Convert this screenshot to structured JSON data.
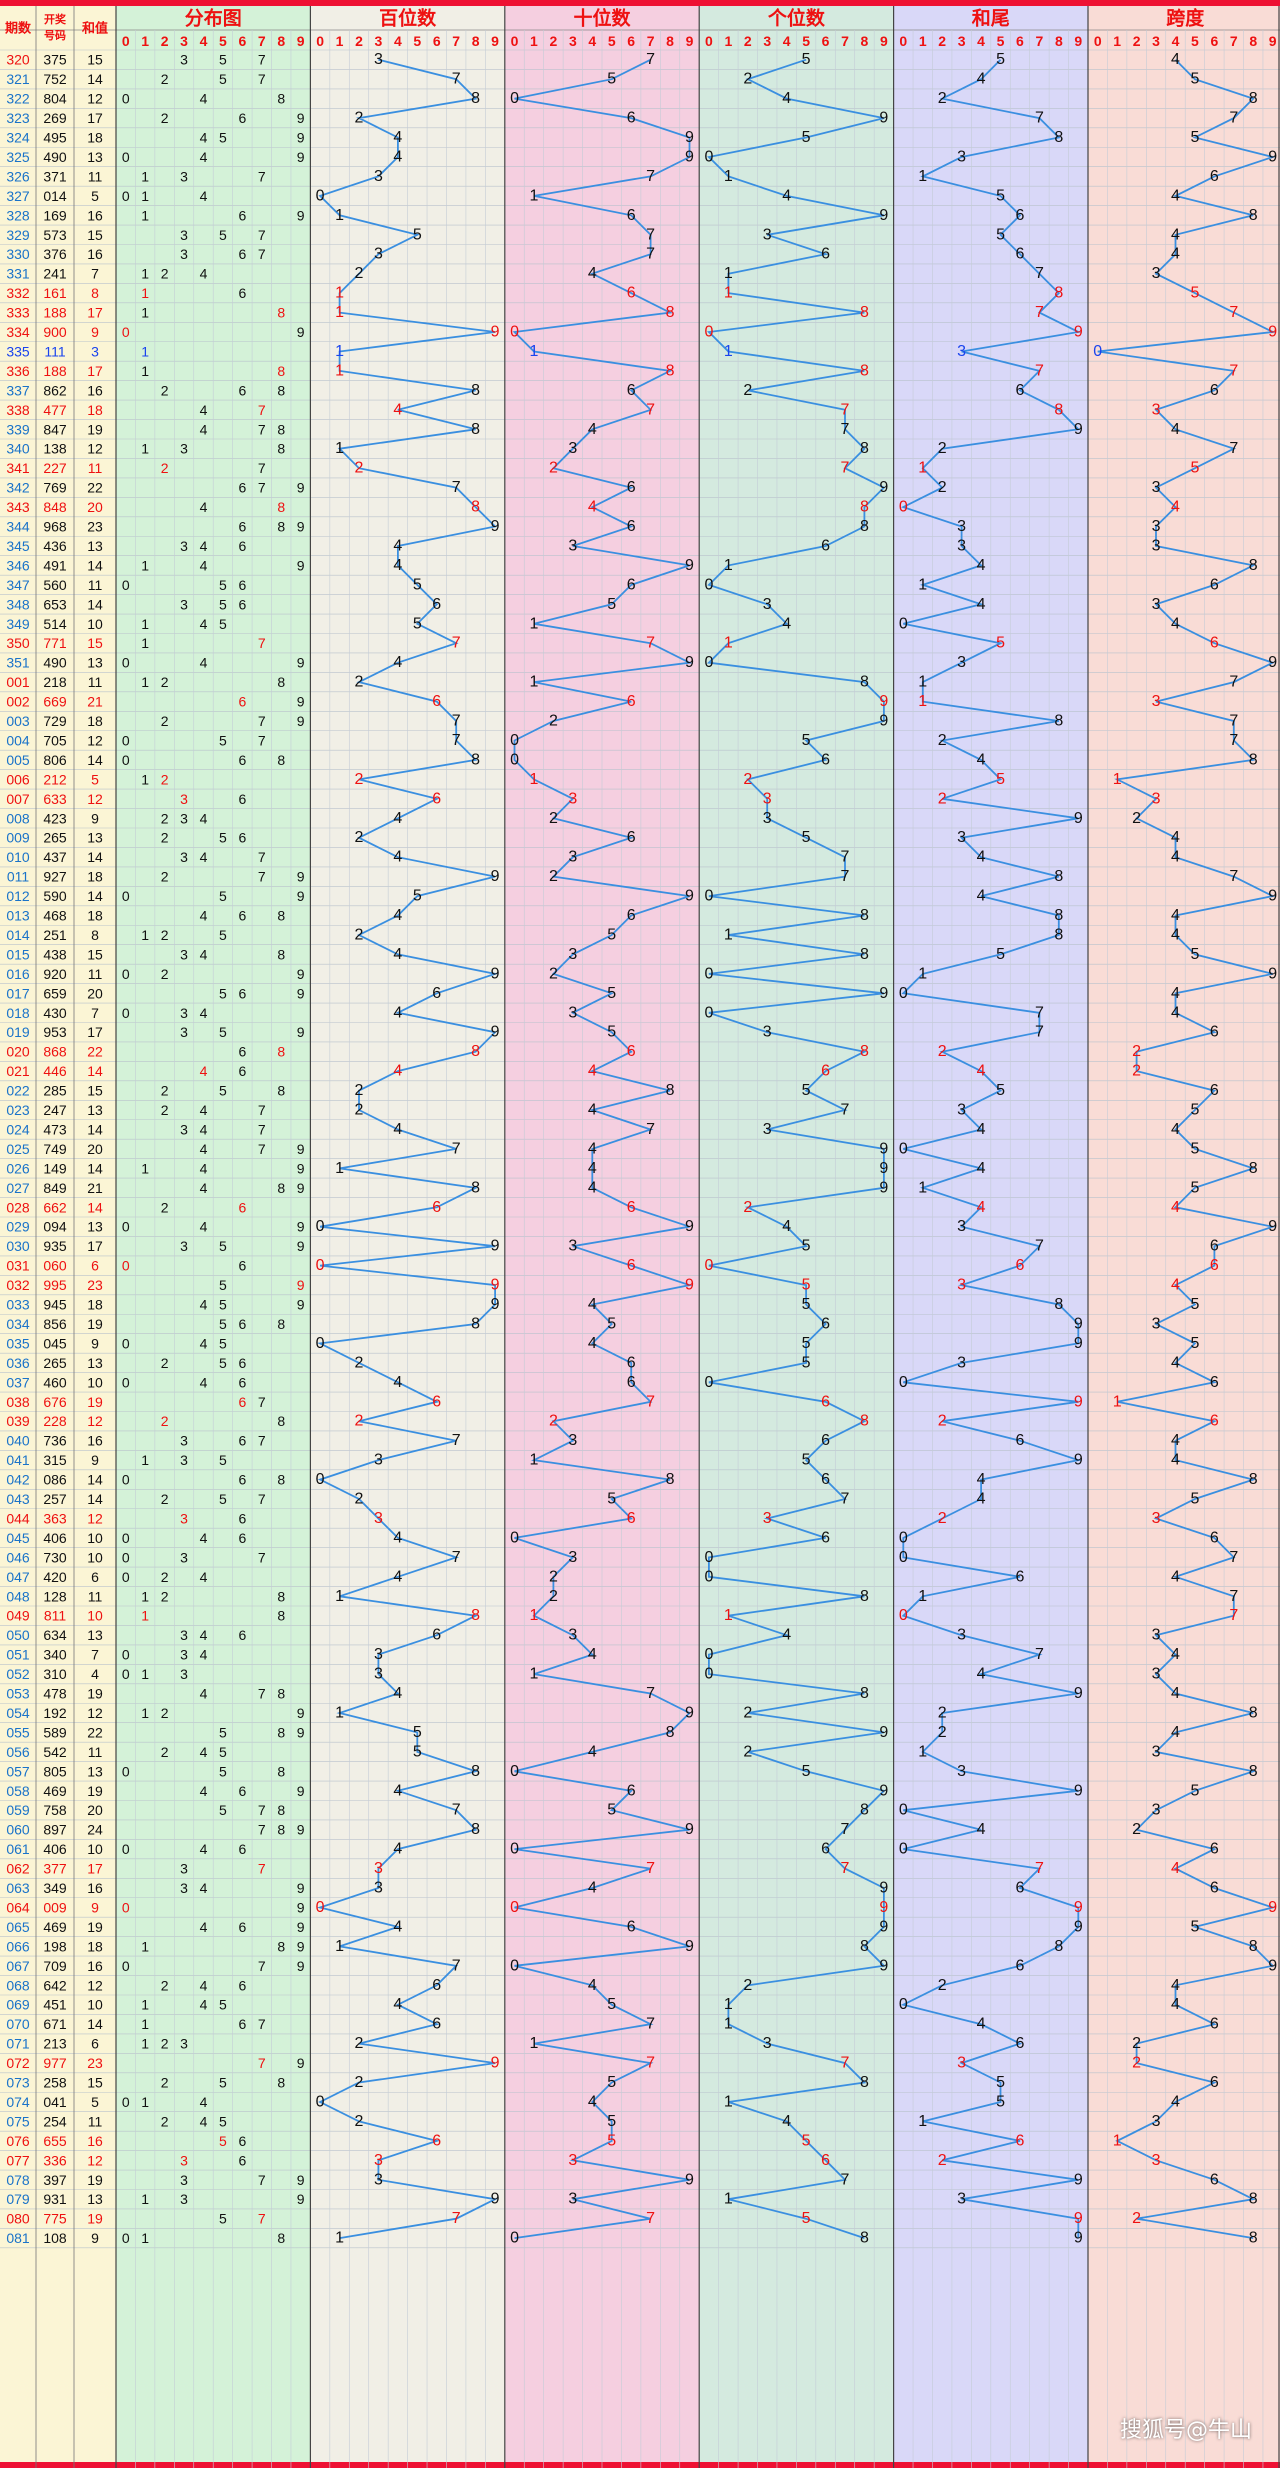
{
  "header": {
    "period_label": "期数",
    "draw_label": "开奖号码",
    "sum_label": "和值",
    "sections": [
      "分布图",
      "百位数",
      "十位数",
      "个位数",
      "和尾",
      "跨度"
    ]
  },
  "colors": {
    "red": "#ee1111",
    "blue": "#1a44ee",
    "black": "#111111",
    "line": "#3a8fe0",
    "sec_dist": "#d4f2d8",
    "sec_hundreds": "#f1efe6",
    "sec_tens": "#f5cfe0",
    "sec_ones": "#d4eadf",
    "sec_sumtail": "#d9d8f8",
    "sec_span": "#f9dcd6",
    "left_bg": "#fbf5d5",
    "top_bar": "#ee1133"
  },
  "chart_data": {
    "type": "table",
    "columns": [
      "期数",
      "开奖号码",
      "和值"
    ],
    "sections": [
      "分布图",
      "百位数",
      "十位数",
      "个位数",
      "和尾",
      "跨度"
    ],
    "digit_headers": [
      "0",
      "1",
      "2",
      "3",
      "4",
      "5",
      "6",
      "7",
      "8",
      "9"
    ],
    "rows": [
      [
        "320",
        "375",
        "15"
      ],
      [
        "321",
        "752",
        "14"
      ],
      [
        "322",
        "804",
        "12"
      ],
      [
        "323",
        "269",
        "17"
      ],
      [
        "324",
        "495",
        "18"
      ],
      [
        "325",
        "490",
        "13"
      ],
      [
        "326",
        "371",
        "11"
      ],
      [
        "327",
        "014",
        "5"
      ],
      [
        "328",
        "169",
        "16"
      ],
      [
        "329",
        "573",
        "15"
      ],
      [
        "330",
        "376",
        "16"
      ],
      [
        "331",
        "241",
        "7"
      ],
      [
        "332",
        "161",
        "8"
      ],
      [
        "333",
        "188",
        "17"
      ],
      [
        "334",
        "900",
        "9"
      ],
      [
        "335",
        "111",
        "3"
      ],
      [
        "336",
        "188",
        "17"
      ],
      [
        "337",
        "862",
        "16"
      ],
      [
        "338",
        "477",
        "18"
      ],
      [
        "339",
        "847",
        "19"
      ],
      [
        "340",
        "138",
        "12"
      ],
      [
        "341",
        "227",
        "11"
      ],
      [
        "342",
        "769",
        "22"
      ],
      [
        "343",
        "848",
        "20"
      ],
      [
        "344",
        "968",
        "23"
      ],
      [
        "345",
        "436",
        "13"
      ],
      [
        "346",
        "491",
        "14"
      ],
      [
        "347",
        "560",
        "11"
      ],
      [
        "348",
        "653",
        "14"
      ],
      [
        "349",
        "514",
        "10"
      ],
      [
        "350",
        "771",
        "15"
      ],
      [
        "351",
        "490",
        "13"
      ],
      [
        "001",
        "218",
        "11"
      ],
      [
        "002",
        "669",
        "21"
      ],
      [
        "003",
        "729",
        "18"
      ],
      [
        "004",
        "705",
        "12"
      ],
      [
        "005",
        "806",
        "14"
      ],
      [
        "006",
        "212",
        "5"
      ],
      [
        "007",
        "633",
        "12"
      ],
      [
        "008",
        "423",
        "9"
      ],
      [
        "009",
        "265",
        "13"
      ],
      [
        "010",
        "437",
        "14"
      ],
      [
        "011",
        "927",
        "18"
      ],
      [
        "012",
        "590",
        "14"
      ],
      [
        "013",
        "468",
        "18"
      ],
      [
        "014",
        "251",
        "8"
      ],
      [
        "015",
        "438",
        "15"
      ],
      [
        "016",
        "920",
        "11"
      ],
      [
        "017",
        "659",
        "20"
      ],
      [
        "018",
        "430",
        "7"
      ],
      [
        "019",
        "953",
        "17"
      ],
      [
        "020",
        "868",
        "22"
      ],
      [
        "021",
        "446",
        "14"
      ],
      [
        "022",
        "285",
        "15"
      ],
      [
        "023",
        "247",
        "13"
      ],
      [
        "024",
        "473",
        "14"
      ],
      [
        "025",
        "749",
        "20"
      ],
      [
        "026",
        "149",
        "14"
      ],
      [
        "027",
        "849",
        "21"
      ],
      [
        "028",
        "662",
        "14"
      ],
      [
        "029",
        "094",
        "13"
      ],
      [
        "030",
        "935",
        "17"
      ],
      [
        "031",
        "060",
        "6"
      ],
      [
        "032",
        "995",
        "23"
      ],
      [
        "033",
        "945",
        "18"
      ],
      [
        "034",
        "856",
        "19"
      ],
      [
        "035",
        "045",
        "9"
      ],
      [
        "036",
        "265",
        "13"
      ],
      [
        "037",
        "460",
        "10"
      ],
      [
        "038",
        "676",
        "19"
      ],
      [
        "039",
        "228",
        "12"
      ],
      [
        "040",
        "736",
        "16"
      ],
      [
        "041",
        "315",
        "9"
      ],
      [
        "042",
        "086",
        "14"
      ],
      [
        "043",
        "257",
        "14"
      ],
      [
        "044",
        "363",
        "12"
      ],
      [
        "045",
        "406",
        "10"
      ],
      [
        "046",
        "730",
        "10"
      ],
      [
        "047",
        "420",
        "6"
      ],
      [
        "048",
        "128",
        "11"
      ],
      [
        "049",
        "811",
        "10"
      ],
      [
        "050",
        "634",
        "13"
      ],
      [
        "051",
        "340",
        "7"
      ],
      [
        "052",
        "310",
        "4"
      ],
      [
        "053",
        "478",
        "19"
      ],
      [
        "054",
        "192",
        "12"
      ],
      [
        "055",
        "589",
        "22"
      ],
      [
        "056",
        "542",
        "11"
      ],
      [
        "057",
        "805",
        "13"
      ],
      [
        "058",
        "469",
        "19"
      ],
      [
        "059",
        "758",
        "20"
      ],
      [
        "060",
        "897",
        "24"
      ],
      [
        "061",
        "406",
        "10"
      ],
      [
        "062",
        "377",
        "17"
      ],
      [
        "063",
        "349",
        "16"
      ],
      [
        "064",
        "009",
        "9"
      ],
      [
        "065",
        "469",
        "19"
      ],
      [
        "066",
        "198",
        "18"
      ],
      [
        "067",
        "709",
        "16"
      ],
      [
        "068",
        "642",
        "12"
      ],
      [
        "069",
        "451",
        "10"
      ],
      [
        "070",
        "671",
        "14"
      ],
      [
        "071",
        "213",
        "6"
      ],
      [
        "072",
        "977",
        "23"
      ],
      [
        "073",
        "258",
        "15"
      ],
      [
        "074",
        "041",
        "5"
      ],
      [
        "075",
        "254",
        "11"
      ],
      [
        "076",
        "655",
        "16"
      ],
      [
        "077",
        "336",
        "12"
      ],
      [
        "078",
        "397",
        "19"
      ],
      [
        "079",
        "931",
        "13"
      ],
      [
        "080",
        "775",
        "19"
      ],
      [
        "081",
        "108",
        "9"
      ]
    ]
  },
  "watermark": "搜狐号@牛山"
}
